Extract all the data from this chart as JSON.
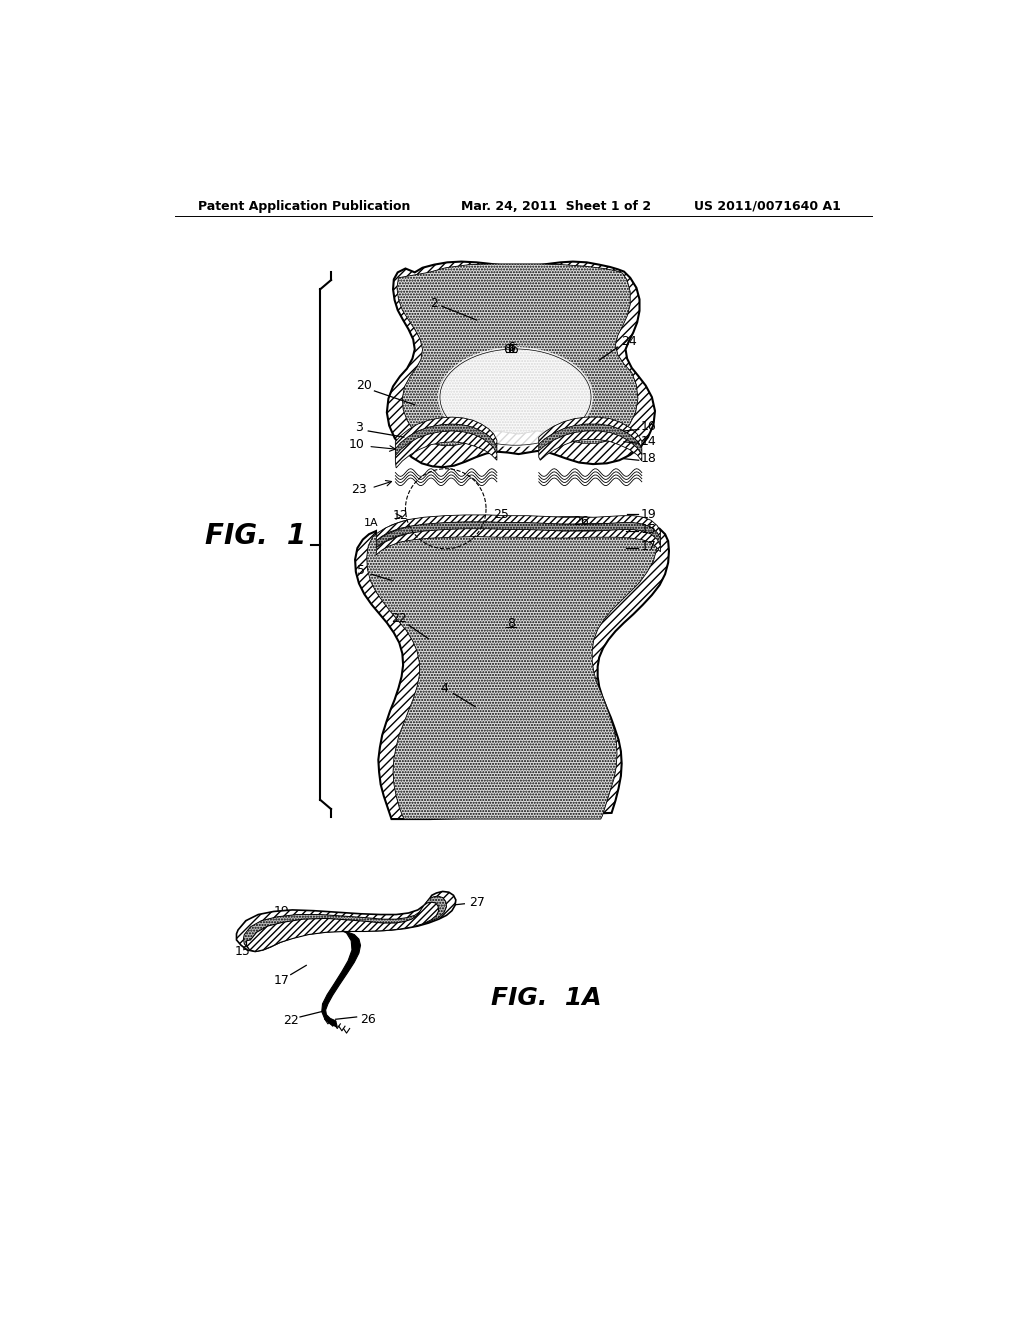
{
  "header_left": "Patent Application Publication",
  "header_center": "Mar. 24, 2011  Sheet 1 of 2",
  "header_right": "US 2011/0071640 A1",
  "fig1_label": "FIG.  1",
  "fig1a_label": "FIG.  1A",
  "background_color": "#ffffff"
}
